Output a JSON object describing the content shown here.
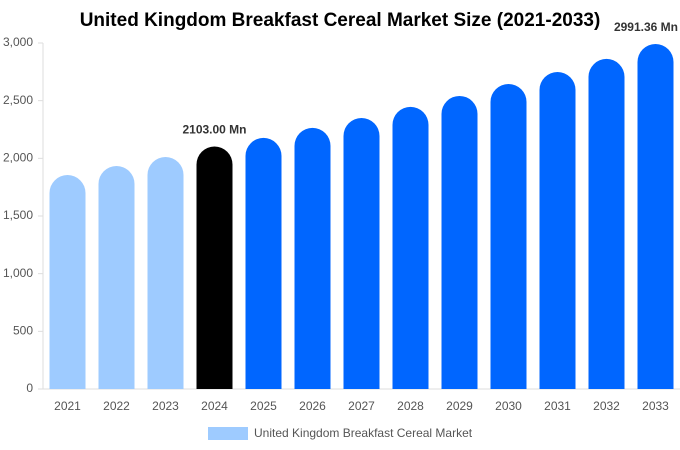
{
  "chart_data": {
    "type": "bar",
    "title": "United Kingdom Breakfast Cereal Market Size (2021-2033)",
    "categories": [
      "2021",
      "2022",
      "2023",
      "2024",
      "2025",
      "2026",
      "2027",
      "2028",
      "2029",
      "2030",
      "2031",
      "2032",
      "2033"
    ],
    "series": [
      {
        "name": "United Kingdom Breakfast Cereal Market",
        "color": "#9ecbff",
        "values": [
          1855,
          1934,
          2012,
          2103,
          2177,
          2264,
          2350,
          2446,
          2541,
          2645,
          2749,
          2862,
          2991.36
        ],
        "colors": [
          "#9ecbff",
          "#9ecbff",
          "#9ecbff",
          "#000000",
          "#0066ff",
          "#0066ff",
          "#0066ff",
          "#0066ff",
          "#0066ff",
          "#0066ff",
          "#0066ff",
          "#0066ff",
          "#0066ff"
        ],
        "value_labels": [
          null,
          null,
          null,
          "2103.00 Mn",
          null,
          null,
          null,
          null,
          null,
          null,
          null,
          null,
          "2991.36 Mn"
        ]
      }
    ],
    "ylim": [
      0,
      3000
    ],
    "yticks": [
      0,
      500,
      {
        "value": 1000,
        "label": "1,000"
      },
      {
        "value": 1500,
        "label": "1,500"
      },
      {
        "value": 2000,
        "label": "2,000"
      },
      {
        "value": 2500,
        "label": "2,500"
      },
      {
        "value": 3000,
        "label": "3,000"
      }
    ],
    "grid": false
  }
}
